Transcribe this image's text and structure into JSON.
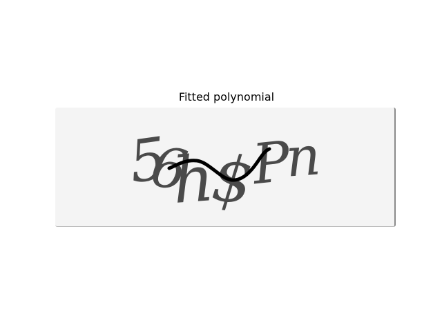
{
  "figure": {
    "title": "Fitted polynomial"
  },
  "captcha": {
    "text": "56h$Pn",
    "glyphs": [
      "5",
      "6",
      "h",
      "$",
      "P",
      "n"
    ],
    "text_color": "#4a4a4a",
    "background_color": "#f4f4f4"
  },
  "curve": {
    "color": "#000000"
  }
}
